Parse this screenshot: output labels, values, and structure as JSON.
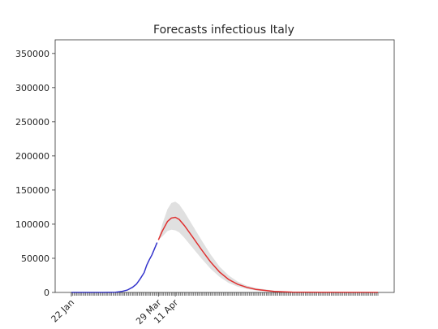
{
  "chart_data": {
    "type": "line",
    "title": "Forecasts infectious Italy",
    "xlabel": "",
    "ylabel": "",
    "x_start": "2020-01-22",
    "x_end": "2020-09-14",
    "x_ticks": [
      {
        "date": "2020-01-22",
        "label": "22 Jan"
      },
      {
        "date": "2020-03-29",
        "label": "29 Mar"
      },
      {
        "date": "2020-04-11",
        "label": "11 Apr"
      }
    ],
    "ylim": [
      0,
      370000
    ],
    "yticks": [
      0,
      50000,
      100000,
      150000,
      200000,
      250000,
      300000,
      350000
    ],
    "grid": false,
    "series": [
      {
        "color": "#3333cc",
        "points": [
          {
            "x": "2020-01-22",
            "y": 0
          },
          {
            "x": "2020-02-15",
            "y": 0
          },
          {
            "x": "2020-02-25",
            "y": 200
          },
          {
            "x": "2020-03-01",
            "y": 1500
          },
          {
            "x": "2020-03-05",
            "y": 3500
          },
          {
            "x": "2020-03-09",
            "y": 7500
          },
          {
            "x": "2020-03-12",
            "y": 12000
          },
          {
            "x": "2020-03-15",
            "y": 20000
          },
          {
            "x": "2020-03-18",
            "y": 29000
          },
          {
            "x": "2020-03-20",
            "y": 40000
          },
          {
            "x": "2020-03-22",
            "y": 48000
          },
          {
            "x": "2020-03-24",
            "y": 55000
          },
          {
            "x": "2020-03-26",
            "y": 64000
          },
          {
            "x": "2020-03-28",
            "y": 73000
          }
        ]
      },
      {
        "color": "#e03030",
        "points": [
          {
            "x": "2020-03-29",
            "y": 77000
          },
          {
            "x": "2020-04-01",
            "y": 90000
          },
          {
            "x": "2020-04-05",
            "y": 104000
          },
          {
            "x": "2020-04-08",
            "y": 109000
          },
          {
            "x": "2020-04-11",
            "y": 110000
          },
          {
            "x": "2020-04-14",
            "y": 107000
          },
          {
            "x": "2020-04-18",
            "y": 98000
          },
          {
            "x": "2020-04-24",
            "y": 82000
          },
          {
            "x": "2020-05-01",
            "y": 63000
          },
          {
            "x": "2020-05-08",
            "y": 45000
          },
          {
            "x": "2020-05-15",
            "y": 30000
          },
          {
            "x": "2020-05-22",
            "y": 19000
          },
          {
            "x": "2020-05-29",
            "y": 12000
          },
          {
            "x": "2020-06-05",
            "y": 7500
          },
          {
            "x": "2020-06-12",
            "y": 4500
          },
          {
            "x": "2020-06-26",
            "y": 1500
          },
          {
            "x": "2020-07-10",
            "y": 500
          },
          {
            "x": "2020-08-01",
            "y": 100
          },
          {
            "x": "2020-09-14",
            "y": 0
          }
        ]
      }
    ],
    "band": {
      "color": "#e0e0e0",
      "points": [
        {
          "x": "2020-03-29",
          "lower": 77000,
          "upper": 78000
        },
        {
          "x": "2020-04-01",
          "lower": 82000,
          "upper": 100000
        },
        {
          "x": "2020-04-05",
          "lower": 90000,
          "upper": 122000
        },
        {
          "x": "2020-04-08",
          "lower": 92000,
          "upper": 131000
        },
        {
          "x": "2020-04-11",
          "lower": 91000,
          "upper": 133000
        },
        {
          "x": "2020-04-14",
          "lower": 88000,
          "upper": 129000
        },
        {
          "x": "2020-04-18",
          "lower": 80000,
          "upper": 118000
        },
        {
          "x": "2020-04-24",
          "lower": 66000,
          "upper": 99000
        },
        {
          "x": "2020-05-01",
          "lower": 50000,
          "upper": 77000
        },
        {
          "x": "2020-05-08",
          "lower": 35000,
          "upper": 56000
        },
        {
          "x": "2020-05-15",
          "lower": 23000,
          "upper": 38000
        },
        {
          "x": "2020-05-22",
          "lower": 14000,
          "upper": 25000
        },
        {
          "x": "2020-05-29",
          "lower": 8500,
          "upper": 16000
        },
        {
          "x": "2020-06-05",
          "lower": 5000,
          "upper": 10000
        },
        {
          "x": "2020-06-12",
          "lower": 3000,
          "upper": 6500
        },
        {
          "x": "2020-06-26",
          "lower": 900,
          "upper": 2500
        },
        {
          "x": "2020-07-10",
          "lower": 200,
          "upper": 900
        },
        {
          "x": "2020-08-01",
          "lower": 0,
          "upper": 200
        },
        {
          "x": "2020-09-14",
          "lower": 0,
          "upper": 0
        }
      ]
    }
  }
}
